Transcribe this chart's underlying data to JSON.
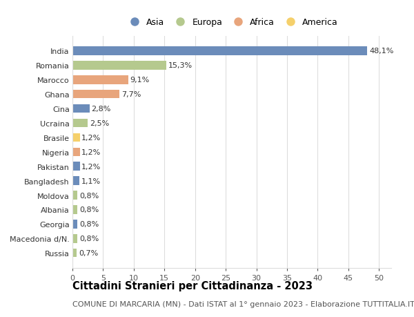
{
  "categories": [
    "Russia",
    "Macedonia d/N.",
    "Georgia",
    "Albania",
    "Moldova",
    "Bangladesh",
    "Pakistan",
    "Nigeria",
    "Brasile",
    "Ucraina",
    "Cina",
    "Ghana",
    "Marocco",
    "Romania",
    "India"
  ],
  "values": [
    0.7,
    0.8,
    0.8,
    0.8,
    0.8,
    1.1,
    1.2,
    1.2,
    1.2,
    2.5,
    2.8,
    7.7,
    9.1,
    15.3,
    48.1
  ],
  "continents": [
    "Europa",
    "Europa",
    "Asia",
    "Europa",
    "Europa",
    "Asia",
    "Asia",
    "Africa",
    "America",
    "Europa",
    "Asia",
    "Africa",
    "Africa",
    "Europa",
    "Asia"
  ],
  "colors": {
    "Asia": "#6b8cba",
    "Europa": "#b5c98e",
    "Africa": "#e8a57c",
    "America": "#f5d06b"
  },
  "legend_order": [
    "Asia",
    "Europa",
    "Africa",
    "America"
  ],
  "title": "Cittadini Stranieri per Cittadinanza - 2023",
  "subtitle": "COMUNE DI MARCARIA (MN) - Dati ISTAT al 1° gennaio 2023 - Elaborazione TUTTITALIA.IT",
  "xlim": [
    0,
    52
  ],
  "xticks": [
    0,
    5,
    10,
    15,
    20,
    25,
    30,
    35,
    40,
    45,
    50
  ],
  "bar_height": 0.6,
  "background_color": "#ffffff",
  "grid_color": "#dddddd",
  "label_fontsize": 8,
  "title_fontsize": 10.5,
  "subtitle_fontsize": 8,
  "tick_fontsize": 8,
  "legend_fontsize": 9
}
